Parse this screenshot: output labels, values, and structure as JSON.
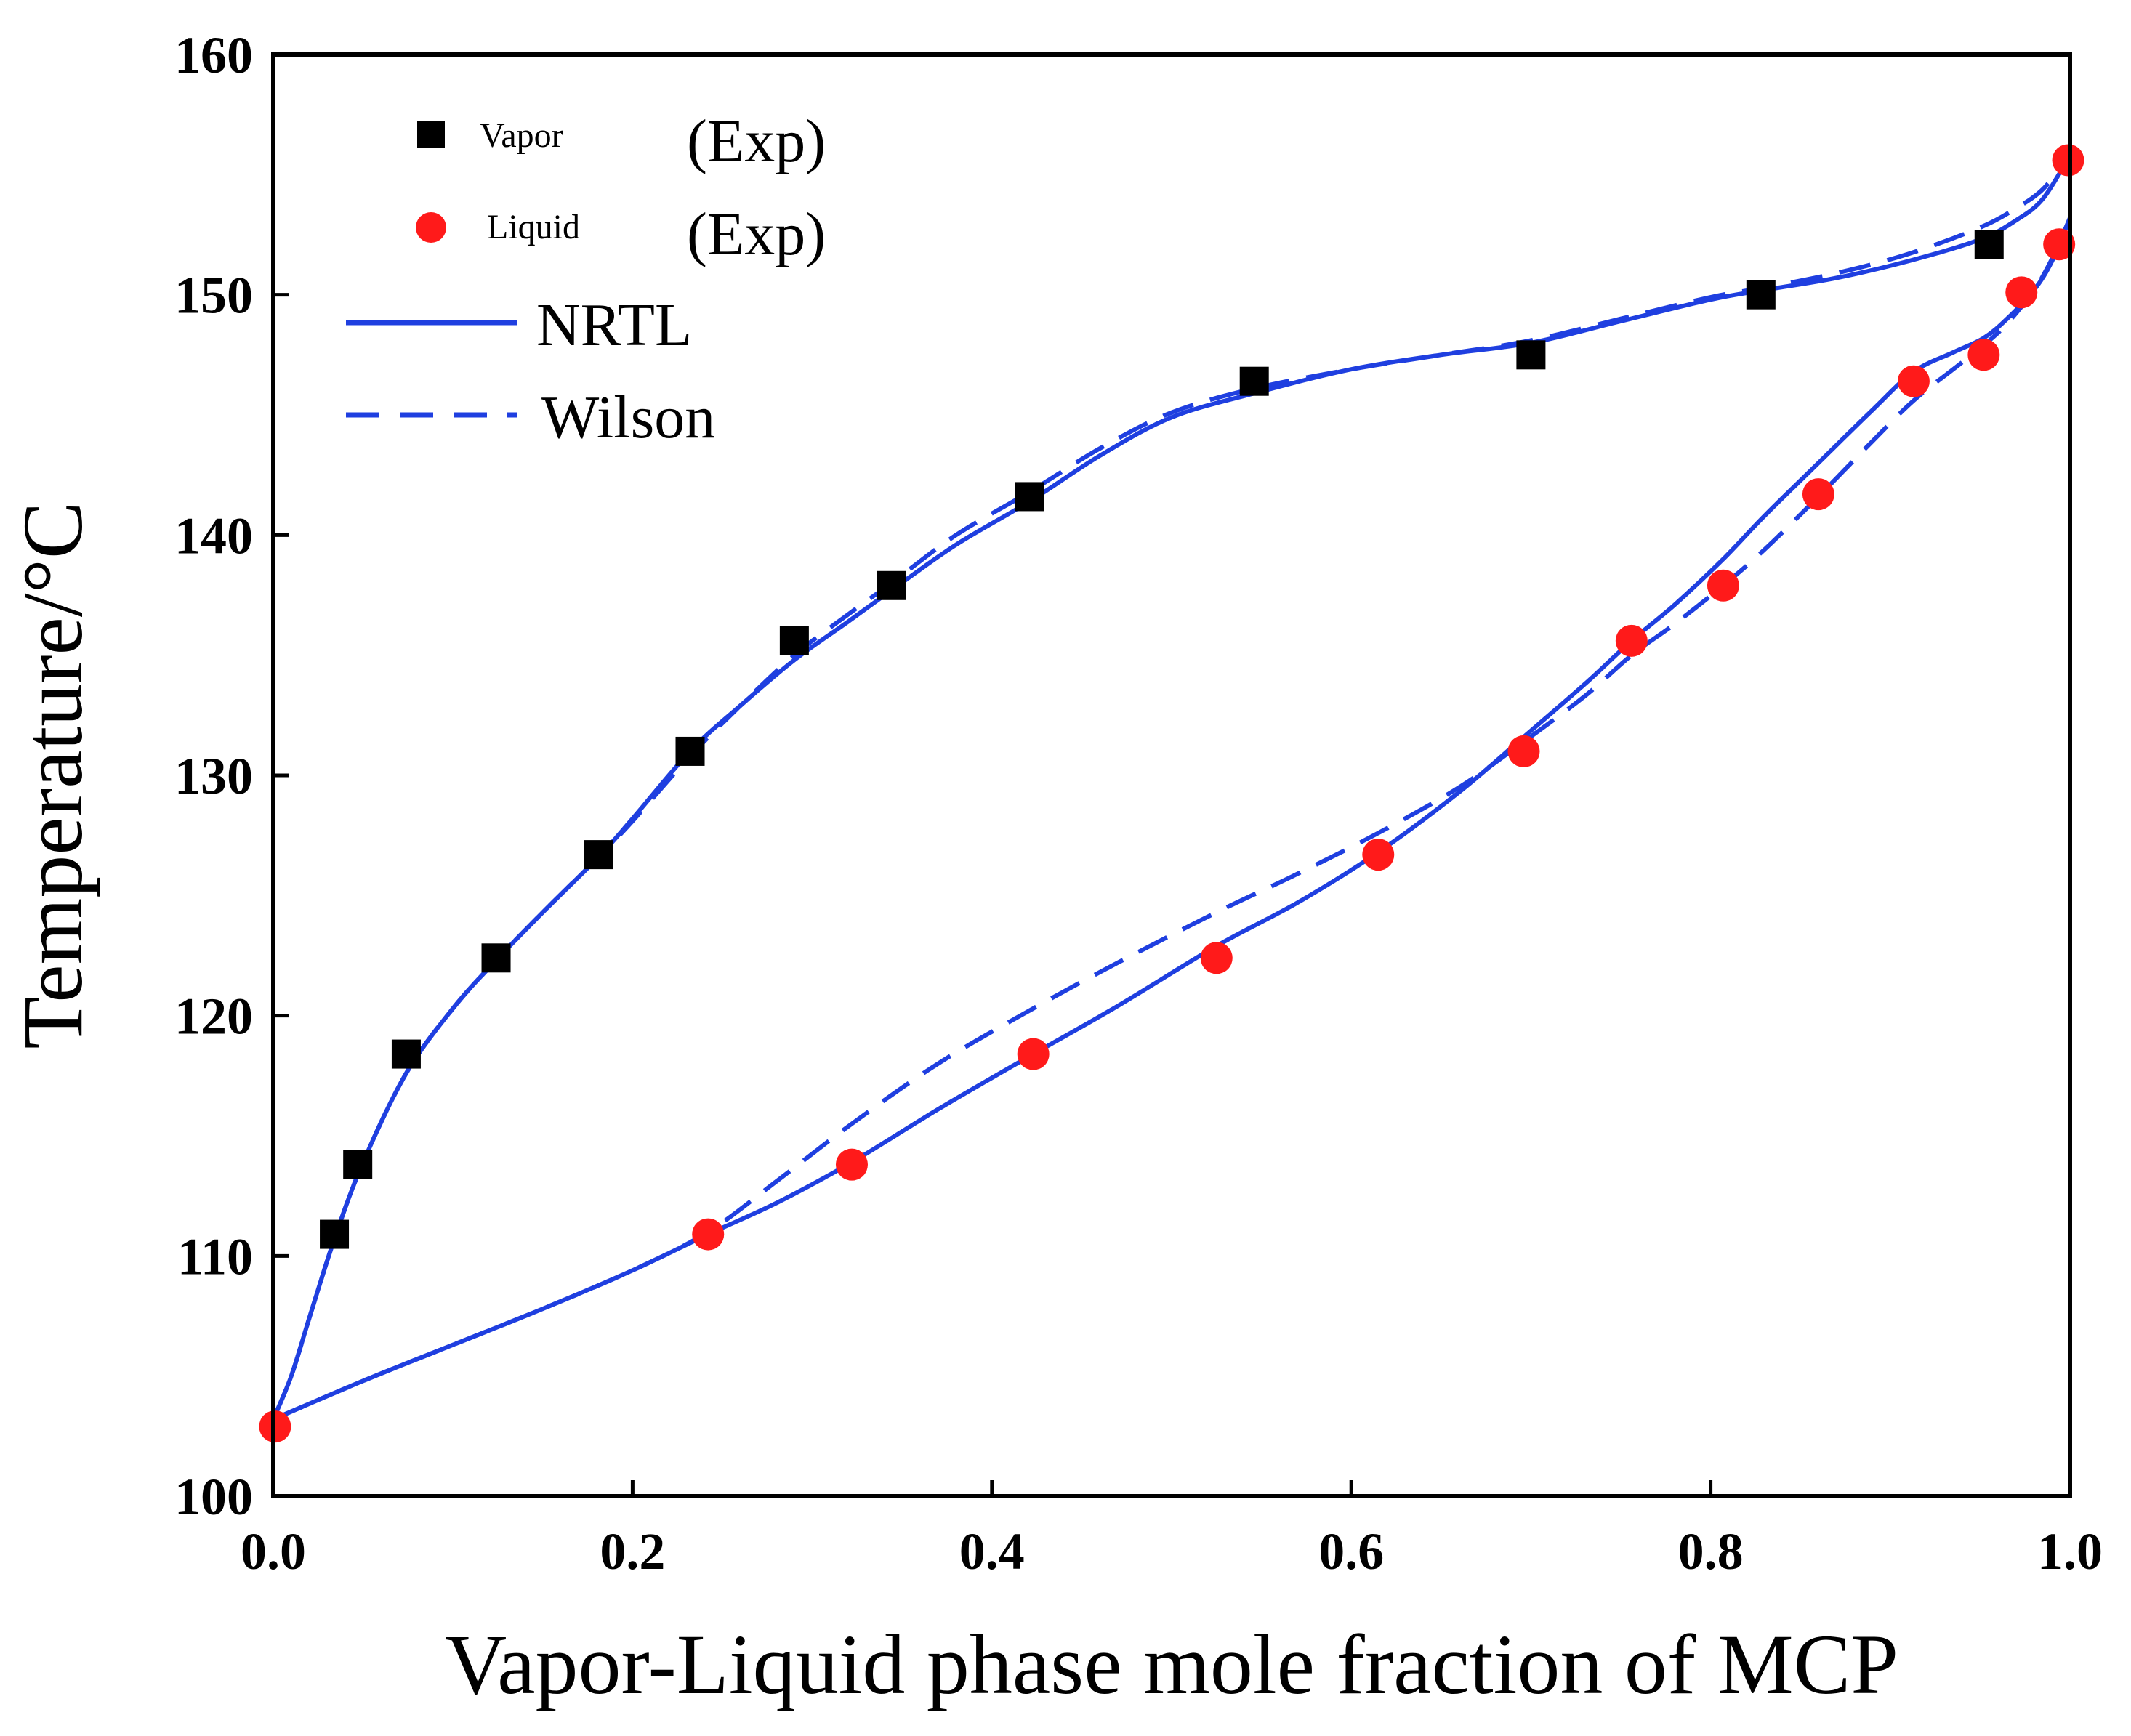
{
  "chart_data": {
    "type": "scatter",
    "xlabel": "Vapor-Liquid phase mole fraction of MCP",
    "ylabel": "Temperature/°C",
    "xlim": [
      0.0,
      1.0
    ],
    "ylim": [
      100,
      160
    ],
    "xticks": [
      "0.0",
      "0.2",
      "0.4",
      "0.6",
      "0.8",
      "1.0"
    ],
    "xtick_values": [
      0.0,
      0.2,
      0.4,
      0.6,
      0.8,
      1.0
    ],
    "yticks": [
      "100",
      "110",
      "120",
      "130",
      "140",
      "150",
      "160"
    ],
    "ytick_values": [
      100,
      110,
      120,
      130,
      140,
      150,
      160
    ],
    "legend_position": "top-left",
    "colors": {
      "vapor": "#000000",
      "liquid": "#ff1a1a",
      "model": "#1f3fe0",
      "axis": "#000000"
    },
    "legend": [
      {
        "label": "Vapor",
        "suffix": "(Exp)",
        "marker": "square"
      },
      {
        "label": "Liquid",
        "suffix": "(Exp)",
        "marker": "circle"
      },
      {
        "label": "NRTL",
        "suffix": "",
        "marker": "solid-line"
      },
      {
        "label": "Wilson",
        "suffix": "",
        "marker": "dashed-line"
      }
    ],
    "series": [
      {
        "name": "Vapor (Exp)",
        "kind": "points",
        "x": [
          0.034,
          0.047,
          0.074,
          0.124,
          0.181,
          0.232,
          0.29,
          0.344,
          0.421,
          0.546,
          0.7,
          0.828,
          0.955
        ],
        "y": [
          110.9,
          113.8,
          118.4,
          122.4,
          126.7,
          131.0,
          135.6,
          137.9,
          141.6,
          146.4,
          147.5,
          150.0,
          152.1
        ]
      },
      {
        "name": "Liquid (Exp)",
        "kind": "points",
        "x": [
          0.001,
          0.242,
          0.322,
          0.423,
          0.525,
          0.615,
          0.696,
          0.756,
          0.807,
          0.86,
          0.913,
          0.952,
          0.973,
          0.994,
          0.999
        ],
        "y": [
          102.9,
          110.9,
          113.8,
          118.4,
          122.4,
          126.7,
          131.0,
          135.6,
          137.9,
          141.7,
          146.4,
          147.5,
          150.1,
          152.1,
          155.6
        ]
      },
      {
        "name": "NRTL vapor",
        "kind": "solid",
        "x": [
          0.0,
          0.01,
          0.02,
          0.034,
          0.05,
          0.074,
          0.1,
          0.124,
          0.15,
          0.181,
          0.2,
          0.232,
          0.26,
          0.29,
          0.32,
          0.344,
          0.38,
          0.421,
          0.46,
          0.5,
          0.546,
          0.6,
          0.65,
          0.7,
          0.75,
          0.8,
          0.83,
          0.87,
          0.91,
          0.95,
          0.97,
          0.985,
          1.0
        ],
        "y": [
          103.2,
          105.0,
          107.4,
          110.7,
          113.9,
          117.6,
          120.3,
          122.3,
          124.3,
          126.6,
          128.2,
          131.0,
          132.9,
          134.8,
          136.4,
          137.7,
          139.6,
          141.4,
          143.3,
          144.9,
          145.9,
          146.9,
          147.5,
          148.0,
          148.9,
          149.8,
          150.2,
          150.7,
          151.4,
          152.3,
          153.1,
          154.0,
          155.8
        ]
      },
      {
        "name": "NRTL liquid",
        "kind": "solid",
        "x": [
          0.0,
          0.05,
          0.1,
          0.15,
          0.2,
          0.242,
          0.28,
          0.322,
          0.37,
          0.423,
          0.47,
          0.525,
          0.57,
          0.615,
          0.66,
          0.696,
          0.73,
          0.756,
          0.78,
          0.807,
          0.83,
          0.86,
          0.89,
          0.913,
          0.935,
          0.952,
          0.965,
          0.98,
          0.99,
          1.0
        ],
        "y": [
          103.2,
          104.8,
          106.3,
          107.8,
          109.4,
          110.9,
          112.2,
          113.9,
          116.1,
          118.4,
          120.4,
          122.9,
          124.7,
          126.8,
          129.3,
          131.6,
          133.8,
          135.6,
          137.1,
          139.0,
          140.8,
          143.0,
          145.2,
          146.8,
          147.6,
          148.2,
          149.0,
          150.2,
          151.4,
          153.2
        ]
      },
      {
        "name": "Wilson vapor",
        "kind": "dashed",
        "x": [
          0.0,
          0.01,
          0.02,
          0.034,
          0.05,
          0.074,
          0.1,
          0.124,
          0.15,
          0.181,
          0.2,
          0.232,
          0.26,
          0.29,
          0.32,
          0.344,
          0.38,
          0.421,
          0.46,
          0.5,
          0.546,
          0.6,
          0.65,
          0.7,
          0.75,
          0.8,
          0.83,
          0.87,
          0.91,
          0.95,
          0.97,
          0.985,
          1.0
        ],
        "y": [
          103.2,
          105.0,
          107.4,
          110.7,
          113.9,
          117.6,
          120.3,
          122.3,
          124.3,
          126.6,
          128.1,
          130.8,
          132.9,
          135.0,
          136.7,
          138.0,
          140.0,
          141.8,
          143.6,
          145.1,
          146.1,
          146.9,
          147.5,
          148.1,
          149.0,
          149.9,
          150.3,
          150.9,
          151.7,
          152.8,
          153.6,
          154.4,
          155.8
        ]
      },
      {
        "name": "Wilson liquid",
        "kind": "dashed",
        "x": [
          0.0,
          0.05,
          0.1,
          0.15,
          0.2,
          0.242,
          0.28,
          0.322,
          0.37,
          0.423,
          0.47,
          0.525,
          0.57,
          0.615,
          0.66,
          0.696,
          0.73,
          0.756,
          0.78,
          0.807,
          0.83,
          0.86,
          0.89,
          0.913,
          0.935,
          0.952,
          0.965,
          0.98,
          0.99,
          1.0
        ],
        "y": [
          103.2,
          104.8,
          106.3,
          107.8,
          109.4,
          111.0,
          113.1,
          115.5,
          118.0,
          120.3,
          122.2,
          124.3,
          125.9,
          127.6,
          129.5,
          131.4,
          133.3,
          135.0,
          136.3,
          137.9,
          139.4,
          141.6,
          143.9,
          145.6,
          146.9,
          147.9,
          148.8,
          150.2,
          151.5,
          153.2
        ]
      }
    ]
  }
}
